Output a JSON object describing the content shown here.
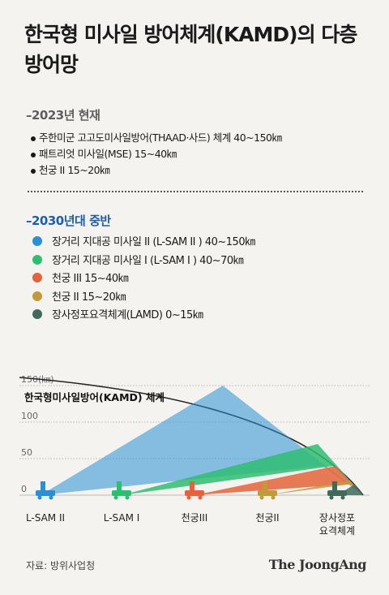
{
  "title": "한국형 미사일 방어체계(KAMD)의 다층 방어망",
  "sections": {
    "current": {
      "heading": "–2023년 현재",
      "items": [
        "주한미군 고고도미사일방어(THAAD·사드) 체계 40~150㎞",
        "패트리엇 미사일(MSE) 15~40㎞",
        "천궁 II 15~20㎞"
      ]
    },
    "future": {
      "heading": "–2030년대 중반",
      "items": [
        {
          "label": "장거리 지대공 미사일 II (L-SAM II ) 40~150㎞",
          "color": "#2a8fd4"
        },
        {
          "label": "장거리 지대공 미사일 I (L-SAM I ) 40~70㎞",
          "color": "#2fbd72"
        },
        {
          "label": "천궁 III 15~40㎞",
          "color": "#e3643a"
        },
        {
          "label": "천궁 II 15~20㎞",
          "color": "#c29a3c"
        },
        {
          "label": "장사정포요격체계(LAMD) 0~15㎞",
          "color": "#3f6a5c"
        }
      ]
    }
  },
  "chart_data": {
    "type": "area",
    "title": "한국형미사일방어(KAMD) 체계",
    "ylabel": "150(㎞)",
    "yticks": [
      {
        "value": 150,
        "label": "150(㎞)"
      },
      {
        "value": 100,
        "label": "100"
      },
      {
        "value": 50,
        "label": "50"
      },
      {
        "value": 0,
        "label": "0"
      }
    ],
    "ylim": [
      0,
      150
    ],
    "grid": true,
    "systems": [
      {
        "name": "L-SAM II",
        "color": "#2a8fd4",
        "range_min": 40,
        "range_max": 150
      },
      {
        "name": "L-SAM I",
        "color": "#2fbd72",
        "range_min": 40,
        "range_max": 70
      },
      {
        "name": "천궁III",
        "color": "#e3643a",
        "range_min": 15,
        "range_max": 40
      },
      {
        "name": "천궁II",
        "color": "#c29a3c",
        "range_min": 15,
        "range_max": 20
      },
      {
        "name": "장사정포\n요격체계",
        "color": "#3f6a5c",
        "range_min": 0,
        "range_max": 15
      }
    ]
  },
  "footer": {
    "source": "자료: 방위사업청",
    "logo": "The JoongAng"
  }
}
